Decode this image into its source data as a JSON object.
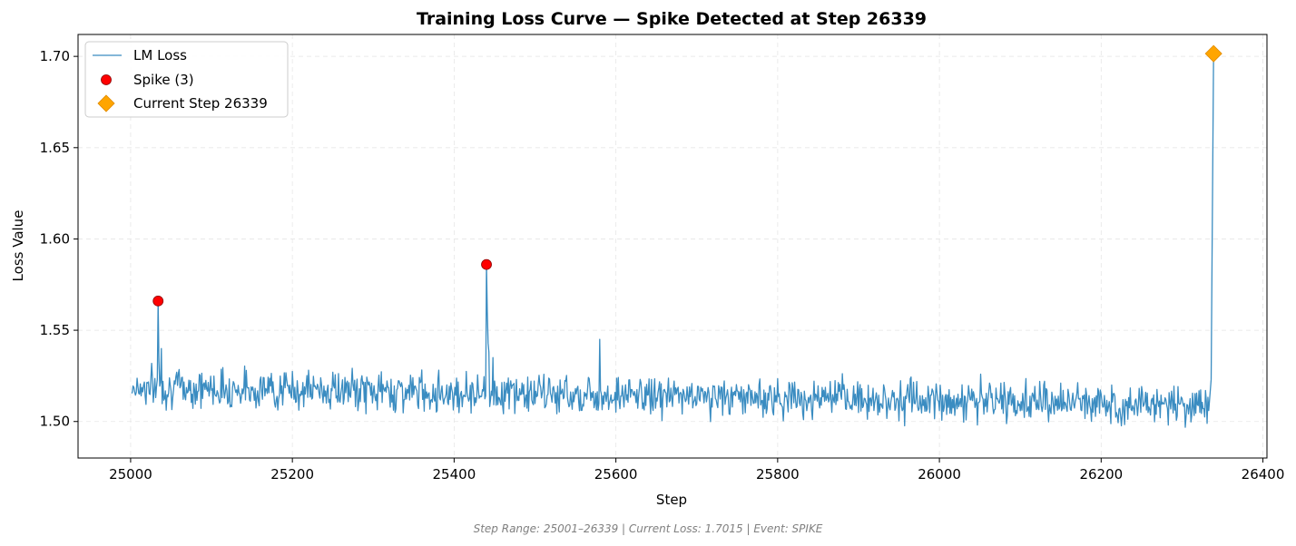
{
  "chart_data": {
    "type": "line",
    "title": "Training Loss Curve — Spike Detected at Step 26339",
    "xlabel": "Step",
    "ylabel": "Loss Value",
    "xlim": [
      24935,
      26405
    ],
    "ylim": [
      1.48,
      1.712
    ],
    "xticks": [
      25000,
      25200,
      25400,
      25600,
      25800,
      26000,
      26200,
      26400
    ],
    "yticks": [
      1.5,
      1.55,
      1.6,
      1.65,
      1.7
    ],
    "grid": true,
    "legend_position": "top-left",
    "colors": {
      "line": "#3a8cc1",
      "spike": "#ff0000",
      "current": "#ffa500",
      "current_edge": "#e08a00",
      "grid": "#e6e6e6",
      "footer": "#808080"
    },
    "series": [
      {
        "name": "LM Loss",
        "kind": "line",
        "generator": {
          "x_start": 25001,
          "x_end": 26333,
          "base_start": 1.519,
          "base_end": 1.509,
          "noise_amplitude": 0.0065,
          "seed": 7
        },
        "points": [
          [
            25034,
            1.566
          ],
          [
            25035,
            1.533
          ],
          [
            25038,
            1.54
          ],
          [
            25440,
            1.586
          ],
          [
            25441,
            1.56
          ],
          [
            25442,
            1.543
          ],
          [
            25443,
            1.538
          ],
          [
            25448,
            1.535
          ],
          [
            25580,
            1.545
          ],
          [
            26333,
            1.506
          ],
          [
            26336,
            1.523
          ],
          [
            26339,
            1.7015
          ]
        ]
      },
      {
        "name": "Spike (3)",
        "kind": "scatter",
        "marker": "circle",
        "points": [
          [
            25034,
            1.566
          ],
          [
            25440,
            1.586
          ]
        ]
      },
      {
        "name": "Current Step 26339",
        "kind": "scatter",
        "marker": "diamond",
        "points": [
          [
            26339,
            1.7015
          ]
        ]
      }
    ],
    "footer": "Step Range: 25001–26339 | Current Loss: 1.7015 | Event: SPIKE"
  }
}
